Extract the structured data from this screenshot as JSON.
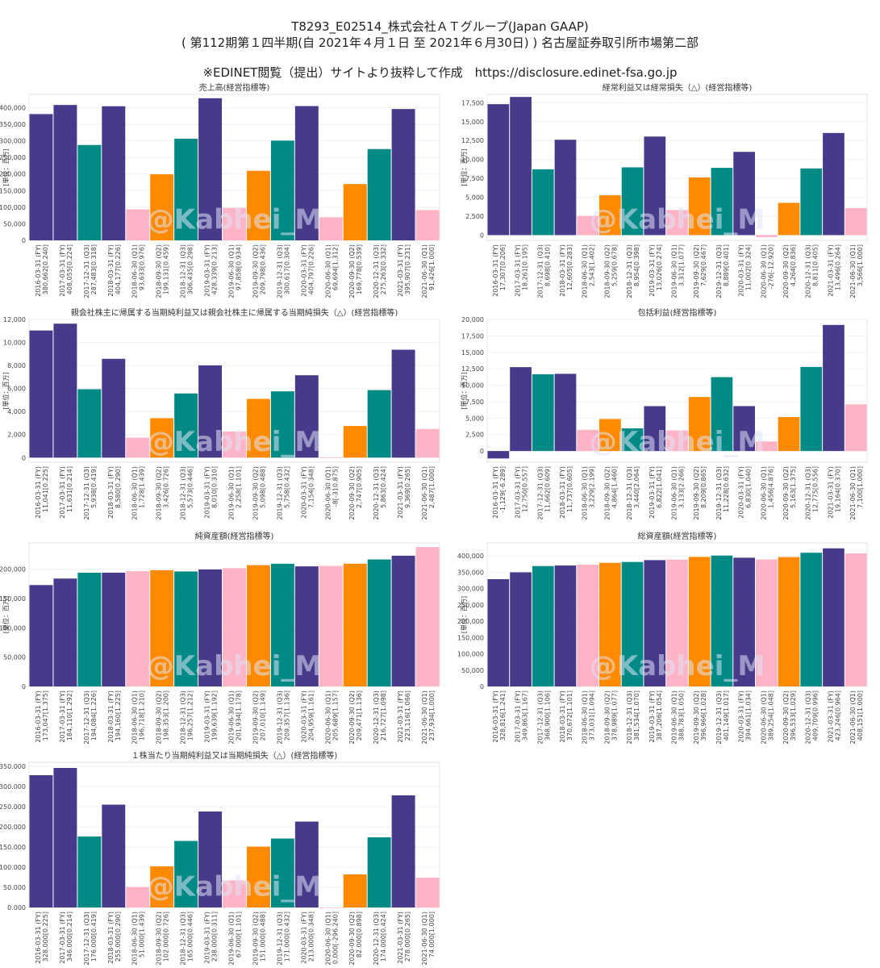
{
  "header": {
    "line1": "T8293_E02514_株式会社ＡＴグループ(Japan GAAP)",
    "line2": "( 第112期第１四半期(自 2021年４月１日 至 2021年６月30日) ) 名古屋証券取引所市場第二部",
    "line3": "※EDINET閲覧（提出）サイトより抜粋して作成　https://disclosure.edinet-fsa.go.jp"
  },
  "watermark": "@Kabhei_M",
  "colors": {
    "FY": "#483a8a",
    "Q1": "#ffb3c6",
    "Q2": "#ff8a00",
    "Q3": "#008a86"
  },
  "chart_data": [
    {
      "type": "bar",
      "title": "売上高(経営指標等)",
      "ylabel": "[単位：百万]",
      "ylim": [
        0,
        440000
      ],
      "yticks": [
        "0",
        "50,000",
        "100,000",
        "150,000",
        "200,000",
        "250,000",
        "300,000",
        "350,000",
        "400,000"
      ],
      "categories": [
        "2016-03-31 (FY)\n380,662[0.240]",
        "2017-03-31 (FY)\n408,055[0.224]",
        "2017-12-31 (Q3)\n287,483[0.318]",
        "2018-03-31 (FY)\n404,177[0.226]",
        "2018-06-30 (Q1)\n93,633[0.976]",
        "2018-09-30 (Q2)\n199,131[0.459]",
        "2018-12-31 (Q3)\n306,435[0.298]",
        "2019-03-31 (FY)\n428,339[0.213]",
        "2019-06-30 (Q1)\n97,858[0.934]",
        "2019-09-30 (Q2)\n209,798[0.436]",
        "2019-12-31 (Q3)\n300,617[0.304]",
        "2020-03-31 (FY)\n404,797[0.226]",
        "2020-06-30 (Q1)\n69,694[1.312]",
        "2020-09-30 (Q2)\n169,778[0.539]",
        "2020-12-31 (Q3)\n275,263[0.332]",
        "2021-03-31 (FY)\n395,907[0.231]",
        "2021-06-30 (Q1)\n91,426[1.000]"
      ],
      "periods": [
        "FY",
        "FY",
        "Q3",
        "FY",
        "Q1",
        "Q2",
        "Q3",
        "FY",
        "Q1",
        "Q2",
        "Q3",
        "FY",
        "Q1",
        "Q2",
        "Q3",
        "FY",
        "Q1"
      ],
      "values": [
        380662,
        408055,
        287483,
        404177,
        93633,
        199131,
        306435,
        428339,
        97858,
        209798,
        300617,
        404797,
        69694,
        169778,
        275263,
        395907,
        91426
      ]
    },
    {
      "type": "bar",
      "title": "経常利益又は経常損失（△）(経営指標等)",
      "ylabel": "[単位：百万]",
      "ylim": [
        -700,
        18600
      ],
      "yticks": [
        "0",
        "2,500",
        "5,000",
        "7,500",
        "10,000",
        "12,500",
        "15,000",
        "17,500"
      ],
      "categories": [
        "2016-03-31 (FY)\n17,307[0.206]",
        "2017-03-31 (FY)\n18,261[0.195]",
        "2017-12-31 (Q3)\n8,698[0.410]",
        "2018-03-31 (FY)\n12,605[0.283]",
        "2018-06-30 (Q1)\n2,543[1.402]",
        "2018-09-30 (Q2)\n5,259[0.678]",
        "2018-12-31 (Q3)\n8,954[0.398]",
        "2019-03-31 (FY)\n13,026[0.274]",
        "2019-06-30 (Q1)\n3,312[1.077]",
        "2019-09-30 (Q2)\n7,629[0.467]",
        "2019-12-31 (Q3)\n8,889[0.401]",
        "2020-03-31 (FY)\n11,002[0.324]",
        "2020-06-30 (Q1)\n-276[-12.920]",
        "2020-09-30 (Q2)\n4,264[0.836]",
        "2020-12-31 (Q3)\n8,811[0.405]",
        "2021-03-31 (FY)\n13,496[0.264]",
        "2021-06-30 (Q1)\n3,566[1.000]"
      ],
      "periods": [
        "FY",
        "FY",
        "Q3",
        "FY",
        "Q1",
        "Q2",
        "Q3",
        "FY",
        "Q1",
        "Q2",
        "Q3",
        "FY",
        "Q1",
        "Q2",
        "Q3",
        "FY",
        "Q1"
      ],
      "values": [
        17307,
        18261,
        8698,
        12605,
        2543,
        5259,
        8954,
        13026,
        3312,
        7629,
        8889,
        11002,
        -276,
        4264,
        8811,
        13496,
        3566
      ]
    },
    {
      "type": "bar",
      "title": "親会社株主に帰属する当期純利益又は親会社株主に帰属する当期純損失（△）(経営指標等)",
      "ylabel": "[単位：百万]",
      "ylim": [
        -400,
        12000
      ],
      "yticks": [
        "0",
        "2,000",
        "4,000",
        "6,000",
        "8,000",
        "10,000",
        "12,000"
      ],
      "categories": [
        "2016-03-31 (FY)\n11,041[0.225]",
        "2017-03-31 (FY)\n11,631[0.214]",
        "2017-12-31 (Q3)\n5,938[0.419]",
        "2018-03-31 (FY)\n8,580[0.290]",
        "2018-06-30 (Q1)\n1,728[1.439]",
        "2018-09-30 (Q2)\n3,426[0.726]",
        "2018-12-31 (Q3)\n5,573[0.446]",
        "2019-03-31 (FY)\n8,010[0.310]",
        "2019-06-30 (Q1)\n2,258[1.101]",
        "2019-09-30 (Q2)\n5,098[0.488]",
        "2019-12-31 (Q3)\n5,758[0.432]",
        "2020-03-31 (FY)\n7,154[0.348]",
        "2020-06-30 (Q1)\n-8[-310.875]",
        "2020-09-30 (Q2)\n2,747[0.905]",
        "2020-12-31 (Q3)\n5,863[0.424]",
        "2021-03-31 (FY)\n9,369[0.265]",
        "2021-06-30 (Q1)\n2,487[1.000]"
      ],
      "periods": [
        "FY",
        "FY",
        "Q3",
        "FY",
        "Q1",
        "Q2",
        "Q3",
        "FY",
        "Q1",
        "Q2",
        "Q3",
        "FY",
        "Q1",
        "Q2",
        "Q3",
        "FY",
        "Q1"
      ],
      "values": [
        11041,
        11631,
        5938,
        8580,
        1728,
        3426,
        5573,
        8010,
        2258,
        5098,
        5758,
        7154,
        -8,
        2747,
        5863,
        9369,
        2487
      ]
    },
    {
      "type": "bar",
      "title": "包括利益(経営指標等)",
      "ylabel": "[単位：百万]",
      "ylim": [
        -1700,
        20000
      ],
      "yticks": [
        "0",
        "2,500",
        "5,000",
        "7,500",
        "10,000",
        "12,500",
        "15,000",
        "17,500",
        "20,000"
      ],
      "categories": [
        "2016-03-31 (FY)\n-1,129[-6.289]",
        "2017-03-31 (FY)\n12,750[0.557]",
        "2017-12-31 (Q3)\n11,662[0.609]",
        "2018-03-31 (FY)\n11,737[0.605]",
        "2018-06-30 (Q1)\n3,229[2.199]",
        "2018-09-30 (Q2)\n4,864[1.460]",
        "2018-12-31 (Q3)\n3,440[2.064]",
        "2019-03-31 (FY)\n6,822[1.041]",
        "2019-06-30 (Q1)\n3,133[2.266]",
        "2019-09-30 (Q2)\n8,209[0.865]",
        "2019-12-31 (Q3)\n11,228[0.632]",
        "2020-03-31 (FY)\n6,830[1.040]",
        "2020-06-30 (Q1)\n1,456[4.876]",
        "2020-09-30 (Q2)\n5,163[1.375]",
        "2020-12-31 (Q3)\n12,775[0.556]",
        "2021-03-31 (FY)\n19,164[0.370]",
        "2021-06-30 (Q1)\n7,100[1.000]"
      ],
      "periods": [
        "FY",
        "FY",
        "Q3",
        "FY",
        "Q1",
        "Q2",
        "Q3",
        "FY",
        "Q1",
        "Q2",
        "Q3",
        "FY",
        "Q1",
        "Q2",
        "Q3",
        "FY",
        "Q1"
      ],
      "values": [
        -1129,
        12750,
        11662,
        11737,
        3229,
        4864,
        3440,
        6822,
        3133,
        8209,
        11228,
        6830,
        1456,
        5163,
        12775,
        19164,
        7100
      ]
    },
    {
      "type": "bar",
      "title": "純資産額(経営指標等)",
      "ylabel": "[単位：百万]",
      "ylim": [
        0,
        245000
      ],
      "yticks": [
        "0",
        "50,000",
        "100,000",
        "150,000",
        "200,000"
      ],
      "categories": [
        "2016-03-31 (FY)\n173,047[1.375]",
        "2017-03-31 (FY)\n184,110[1.292]",
        "2017-12-31 (Q3)\n194,084[1.226]",
        "2018-03-31 (FY)\n194,160[1.225]",
        "2018-06-30 (Q1)\n196,718[1.210]",
        "2018-09-30 (Q2)\n198,353[1.200]",
        "2018-12-31 (Q3)\n196,257[1.212]",
        "2019-03-31 (FY)\n199,639[1.192]",
        "2019-06-30 (Q1)\n201,934[1.178]",
        "2019-09-30 (Q2)\n207,010[1.149]",
        "2019-12-31 (Q3)\n209,357[1.136]",
        "2020-03-31 (FY)\n204,959[1.161]",
        "2020-06-30 (Q1)\n205,689[1.157]",
        "2020-09-30 (Q2)\n209,471[1.136]",
        "2020-12-31 (Q3)\n216,727[1.098]",
        "2021-03-31 (FY)\n223,116[1.066]",
        "2021-06-30 (Q1)\n237,934[1.000]"
      ],
      "periods": [
        "FY",
        "FY",
        "Q3",
        "FY",
        "Q1",
        "Q2",
        "Q3",
        "FY",
        "Q1",
        "Q2",
        "Q3",
        "FY",
        "Q1",
        "Q2",
        "Q3",
        "FY",
        "Q1"
      ],
      "values": [
        173047,
        184110,
        194084,
        194160,
        196718,
        198353,
        196257,
        199639,
        201934,
        207010,
        209357,
        204959,
        205689,
        209471,
        216727,
        223116,
        237934
      ]
    },
    {
      "type": "bar",
      "title": "総資産額(経営指標等)",
      "ylabel": "[単位：百万]",
      "ylim": [
        0,
        440000
      ],
      "yticks": [
        "0",
        "50,000",
        "100,000",
        "150,000",
        "200,000",
        "250,000",
        "300,000",
        "350,000",
        "400,000"
      ],
      "categories": [
        "2016-03-31 (FY)\n328,816[1.241]",
        "2017-03-31 (FY)\n349,863[1.167]",
        "2017-12-31 (Q3)\n368,900[1.106]",
        "2018-03-31 (FY)\n370,672[1.101]",
        "2018-06-30 (Q1)\n373,031[1.094]",
        "2018-09-30 (Q2)\n378,989[1.077]",
        "2018-12-31 (Q3)\n381,534[1.070]",
        "2019-03-31 (FY)\n387,206[1.054]",
        "2019-06-30 (Q1)\n388,783[1.050]",
        "2019-09-30 (Q2)\n396,966[1.028]",
        "2019-12-31 (Q3)\n401,149[1.017]",
        "2020-03-31 (FY)\n394,661[1.034]",
        "2020-06-30 (Q1)\n389,254[1.048]",
        "2020-09-30 (Q2)\n396,533[1.029]",
        "2020-12-31 (Q3)\n409,709[0.996]",
        "2021-03-31 (FY)\n423,246[0.964]",
        "2021-06-30 (Q1)\n408,151[1.000]"
      ],
      "periods": [
        "FY",
        "FY",
        "Q3",
        "FY",
        "Q1",
        "Q2",
        "Q3",
        "FY",
        "Q1",
        "Q2",
        "Q3",
        "FY",
        "Q1",
        "Q2",
        "Q3",
        "FY",
        "Q1"
      ],
      "values": [
        328816,
        349863,
        368900,
        370672,
        373031,
        378989,
        381534,
        387206,
        388783,
        396966,
        401149,
        394661,
        389254,
        396533,
        409709,
        423246,
        408151
      ]
    },
    {
      "type": "bar",
      "title": "１株当たり当期純利益又は当期純損失（△）(経営指標等)",
      "ylabel": "",
      "ylim": [
        0,
        360
      ],
      "yticks": [
        "0.000",
        "50.000",
        "100.000",
        "150.000",
        "200.000",
        "250.000",
        "300.000",
        "350.000"
      ],
      "categories": [
        "2016-03-31 (FY)\n328.000[0.225]",
        "2017-03-31 (FY)\n346.000[0.214]",
        "2017-12-31 (Q3)\n176.000[0.419]",
        "2018-03-31 (FY)\n255.000[0.290]",
        "2018-06-30 (Q1)\n51.000[1.439]",
        "2018-09-30 (Q2)\n102.000[0.726]",
        "2018-12-31 (Q3)\n165.000[0.446]",
        "2019-03-31 (FY)\n238.000[0.311]",
        "2019-06-30 (Q1)\n67.000[1.101]",
        "2019-09-30 (Q2)\n151.000[0.488]",
        "2019-12-31 (Q3)\n171.000[0.432]",
        "2020-03-31 (FY)\n213.000[0.348]",
        "2020-06-30 (Q1)\n0.000[-296.240]",
        "2020-09-30 (Q2)\n82.000[0.898]",
        "2020-12-31 (Q3)\n174.000[0.424]",
        "2021-03-31 (FY)\n278.000[0.265]",
        "2021-06-30 (Q1)\n74.000[1.000]"
      ],
      "periods": [
        "FY",
        "FY",
        "Q3",
        "FY",
        "Q1",
        "Q2",
        "Q3",
        "FY",
        "Q1",
        "Q2",
        "Q3",
        "FY",
        "Q1",
        "Q2",
        "Q3",
        "FY",
        "Q1"
      ],
      "values": [
        328,
        346,
        176,
        255,
        51,
        102,
        165,
        238,
        67,
        151,
        171,
        213,
        0,
        82,
        174,
        278,
        74
      ]
    }
  ]
}
